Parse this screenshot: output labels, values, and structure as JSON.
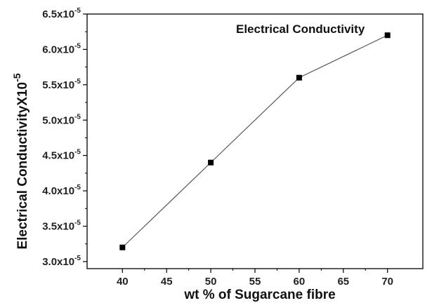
{
  "chart_data": {
    "type": "line",
    "x": [
      40,
      50,
      60,
      70
    ],
    "series": [
      {
        "name": "Electrical Conductivity",
        "values": [
          3.2e-05,
          4.4e-05,
          5.6e-05,
          6.2e-05
        ]
      }
    ],
    "xlabel": "wt % of Sugarcane fibre",
    "ylabel": "Electrical ConductivityX10",
    "ylabel_exponent": "-5",
    "xlim": [
      36,
      74
    ],
    "ylim": [
      2.9e-05,
      6.5e-05
    ],
    "x_ticks": [
      40,
      45,
      50,
      55,
      60,
      65,
      70
    ],
    "x_tick_labels": [
      "40",
      "45",
      "50",
      "55",
      "60",
      "65",
      "70"
    ],
    "y_ticks": [
      3e-05,
      3.5e-05,
      4e-05,
      4.5e-05,
      5e-05,
      5.5e-05,
      6e-05,
      6.5e-05
    ],
    "y_tick_labels": [
      {
        "mantissa": "3.0x10",
        "exponent": "-5"
      },
      {
        "mantissa": "3.5x10",
        "exponent": "-5"
      },
      {
        "mantissa": "4.0x10",
        "exponent": "-5"
      },
      {
        "mantissa": "4.5x10",
        "exponent": "-5"
      },
      {
        "mantissa": "5.0x10",
        "exponent": "-5"
      },
      {
        "mantissa": "5.5x10",
        "exponent": "-5"
      },
      {
        "mantissa": "6.0x10",
        "exponent": "-5"
      },
      {
        "mantissa": "6.5x10",
        "exponent": "-5"
      }
    ],
    "legend_position": "top-right",
    "grid": false,
    "marker": "square",
    "line_color": "#555555",
    "marker_color": "#000000"
  }
}
